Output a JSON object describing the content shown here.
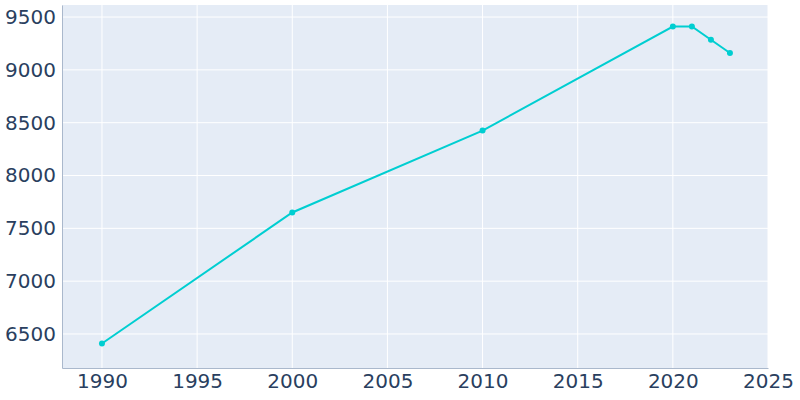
{
  "chart_data": {
    "type": "line",
    "x": [
      1990,
      2000,
      2010,
      2020,
      2021,
      2022,
      2023
    ],
    "values": [
      6410,
      7650,
      8425,
      9410,
      9410,
      9285,
      9160
    ],
    "color": "#00ced1",
    "marker": "circle",
    "xlim": [
      1987.9,
      2025
    ],
    "ylim": [
      6178,
      9614
    ],
    "xticks": [
      1990,
      1995,
      2000,
      2005,
      2010,
      2015,
      2020,
      2025
    ],
    "yticks": [
      6500,
      7000,
      7500,
      8000,
      8500,
      9000,
      9500
    ],
    "grid": true
  }
}
